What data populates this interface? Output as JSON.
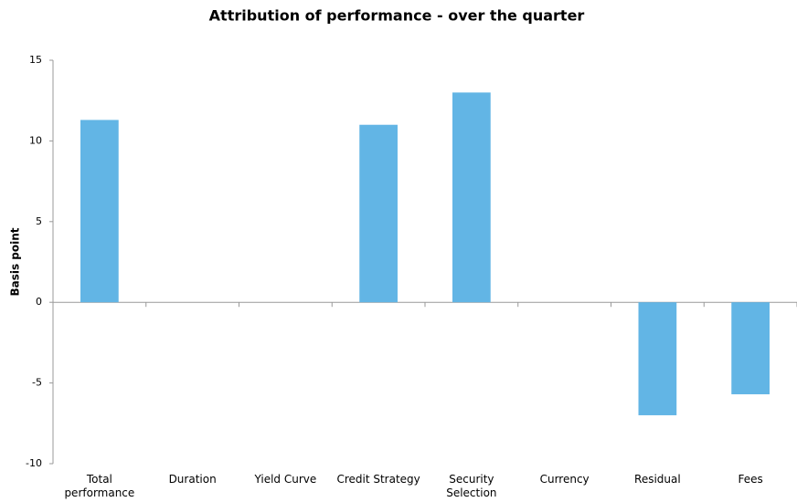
{
  "chart_data": {
    "type": "bar",
    "title": "Attribution of performance - over the quarter",
    "y_label": "Basis point",
    "categories": [
      "Total performance",
      "Duration",
      "Yield Curve",
      "Credit Strategy",
      "Security Selection",
      "Currency",
      "Residual",
      "Fees"
    ],
    "values": [
      11.3,
      0,
      0,
      11.0,
      13.0,
      0,
      -7.0,
      -5.7
    ],
    "color": "#62b5e5",
    "ylim": [
      -10,
      15
    ],
    "yticks": [
      -10,
      -5,
      0,
      5,
      10,
      15
    ],
    "grid": false
  }
}
